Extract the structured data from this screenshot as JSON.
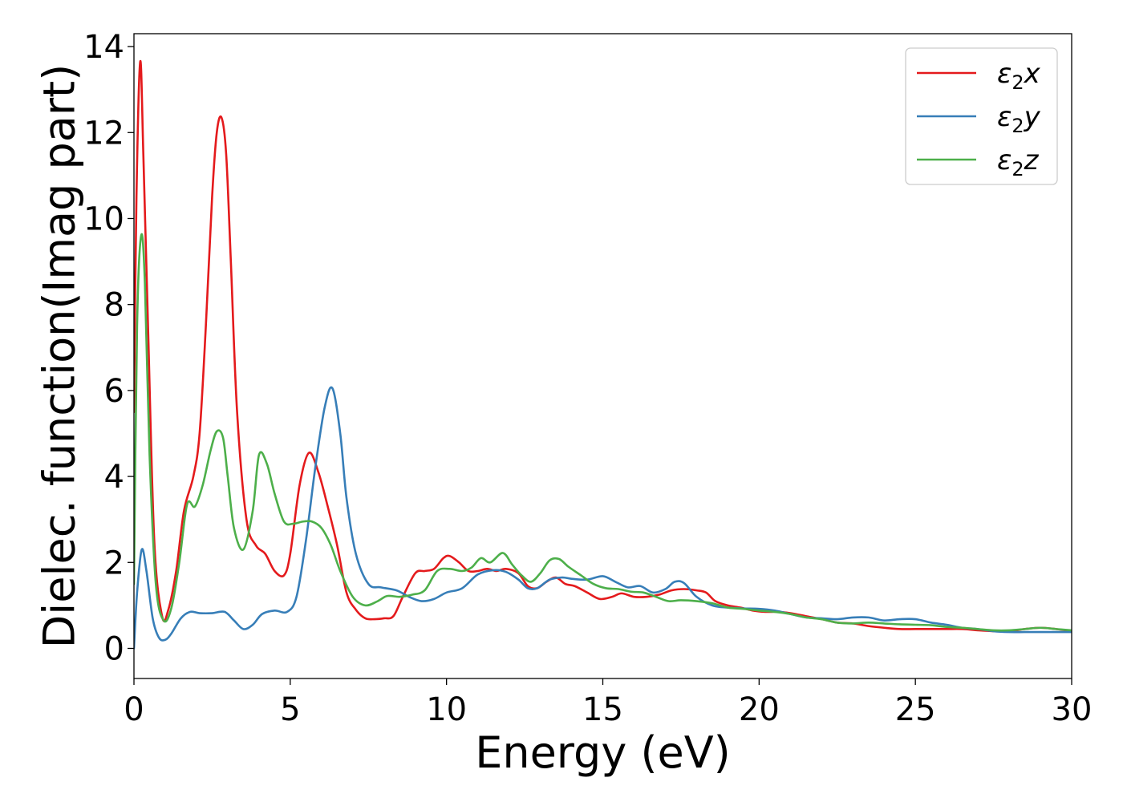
{
  "chart_data": {
    "type": "line",
    "xlabel": "Energy (eV)",
    "ylabel": "Dielec. function(Imag part)",
    "xlim": [
      0,
      30
    ],
    "ylim": [
      -0.7,
      14.3
    ],
    "xticks": [
      "0",
      "5",
      "10",
      "15",
      "20",
      "25",
      "30"
    ],
    "yticks": [
      "0",
      "2",
      "4",
      "6",
      "8",
      "10",
      "12",
      "14"
    ],
    "grid": false,
    "legend_position": "top-right",
    "series": [
      {
        "name": "ε₂x",
        "legend_base": "ε",
        "legend_sub": "2",
        "legend_suffix": "x",
        "color": "#e41a1c",
        "x": [
          0,
          0.08,
          0.2,
          0.3,
          0.45,
          0.65,
          0.9,
          1.1,
          1.35,
          1.6,
          1.9,
          2.1,
          2.3,
          2.5,
          2.65,
          2.8,
          2.95,
          3.1,
          3.3,
          3.6,
          3.9,
          4.2,
          4.5,
          4.8,
          5.0,
          5.3,
          5.6,
          5.9,
          6.2,
          6.5,
          6.8,
          7.1,
          7.4,
          7.7,
          8.0,
          8.3,
          8.6,
          9.0,
          9.3,
          9.6,
          9.9,
          10.1,
          10.4,
          10.7,
          11.0,
          11.3,
          11.6,
          11.9,
          12.3,
          12.6,
          12.9,
          13.2,
          13.5,
          13.8,
          14.1,
          14.5,
          14.9,
          15.3,
          15.6,
          16.0,
          16.4,
          16.8,
          17.2,
          17.6,
          18.0,
          18.3,
          18.6,
          19.0,
          19.4,
          19.8,
          20.2,
          20.6,
          21.0,
          21.5,
          22.0,
          22.5,
          23.0,
          23.5,
          24.0,
          24.5,
          25.0,
          25.5,
          26.0,
          26.5,
          27.0,
          27.5,
          28.0,
          28.5,
          29.0,
          29.5,
          30.0
        ],
        "y": [
          5.5,
          10.5,
          13.65,
          11.5,
          7.5,
          2.5,
          0.75,
          0.9,
          1.8,
          3.2,
          4.0,
          5.0,
          7.5,
          10.5,
          12.0,
          12.35,
          11.5,
          9.0,
          5.5,
          3.0,
          2.4,
          2.2,
          1.8,
          1.7,
          2.2,
          3.8,
          4.55,
          4.1,
          3.3,
          2.4,
          1.3,
          0.9,
          0.7,
          0.68,
          0.7,
          0.75,
          1.2,
          1.75,
          1.8,
          1.85,
          2.1,
          2.15,
          2.0,
          1.8,
          1.8,
          1.85,
          1.8,
          1.85,
          1.75,
          1.45,
          1.4,
          1.55,
          1.65,
          1.5,
          1.45,
          1.3,
          1.15,
          1.2,
          1.28,
          1.2,
          1.2,
          1.25,
          1.35,
          1.38,
          1.35,
          1.3,
          1.1,
          1.0,
          0.95,
          0.88,
          0.85,
          0.85,
          0.82,
          0.75,
          0.68,
          0.6,
          0.58,
          0.52,
          0.48,
          0.45,
          0.45,
          0.45,
          0.45,
          0.45,
          0.42,
          0.4,
          0.4,
          0.45,
          0.48,
          0.45,
          0.4
        ]
      },
      {
        "name": "ε₂y",
        "legend_base": "ε",
        "legend_sub": "2",
        "legend_suffix": "y",
        "color": "#377eb8",
        "x": [
          0,
          0.1,
          0.25,
          0.4,
          0.6,
          0.8,
          1.0,
          1.2,
          1.5,
          1.8,
          2.1,
          2.5,
          2.9,
          3.2,
          3.5,
          3.8,
          4.1,
          4.5,
          4.9,
          5.2,
          5.5,
          5.8,
          6.1,
          6.35,
          6.6,
          6.8,
          7.1,
          7.5,
          7.9,
          8.4,
          8.8,
          9.2,
          9.6,
          10.0,
          10.5,
          11.0,
          11.5,
          11.9,
          12.3,
          12.6,
          12.9,
          13.3,
          13.7,
          14.0,
          14.5,
          15.0,
          15.4,
          15.8,
          16.2,
          16.6,
          17.0,
          17.3,
          17.6,
          18.0,
          18.5,
          19.0,
          19.5,
          20.0,
          20.5,
          21.0,
          21.5,
          22.0,
          22.5,
          23.0,
          23.5,
          24.0,
          24.5,
          25.0,
          25.5,
          26.0,
          26.5,
          27.0,
          27.5,
          28.0,
          28.5,
          29.0,
          29.5,
          30.0
        ],
        "y": [
          0.0,
          1.3,
          2.3,
          1.8,
          0.7,
          0.25,
          0.2,
          0.35,
          0.7,
          0.85,
          0.82,
          0.82,
          0.85,
          0.65,
          0.45,
          0.55,
          0.8,
          0.88,
          0.85,
          1.2,
          2.5,
          4.2,
          5.6,
          6.05,
          5.0,
          3.5,
          2.2,
          1.5,
          1.42,
          1.35,
          1.2,
          1.1,
          1.15,
          1.3,
          1.4,
          1.72,
          1.82,
          1.78,
          1.6,
          1.4,
          1.4,
          1.6,
          1.65,
          1.62,
          1.6,
          1.68,
          1.55,
          1.42,
          1.45,
          1.3,
          1.38,
          1.55,
          1.52,
          1.2,
          1.0,
          0.95,
          0.93,
          0.92,
          0.88,
          0.8,
          0.72,
          0.7,
          0.68,
          0.72,
          0.72,
          0.65,
          0.68,
          0.68,
          0.6,
          0.55,
          0.48,
          0.45,
          0.4,
          0.38,
          0.38,
          0.38,
          0.38,
          0.38
        ]
      },
      {
        "name": "ε₂z",
        "legend_base": "ε",
        "legend_sub": "2",
        "legend_suffix": "z",
        "color": "#4daf4a",
        "x": [
          0,
          0.1,
          0.23,
          0.35,
          0.5,
          0.7,
          0.95,
          1.2,
          1.45,
          1.7,
          1.95,
          2.2,
          2.45,
          2.65,
          2.85,
          3.0,
          3.2,
          3.5,
          3.8,
          4.0,
          4.25,
          4.5,
          4.8,
          5.1,
          5.4,
          5.7,
          6.0,
          6.3,
          6.6,
          7.0,
          7.4,
          7.8,
          8.1,
          8.5,
          8.9,
          9.3,
          9.7,
          10.1,
          10.5,
          10.8,
          11.1,
          11.4,
          11.8,
          12.1,
          12.4,
          12.7,
          13.0,
          13.3,
          13.6,
          13.9,
          14.3,
          14.7,
          15.1,
          15.5,
          15.9,
          16.3,
          16.7,
          17.1,
          17.5,
          18.0,
          18.5,
          19.0,
          19.5,
          20.0,
          20.5,
          21.0,
          21.5,
          22.0,
          22.5,
          23.0,
          23.5,
          24.0,
          24.5,
          25.0,
          25.5,
          26.0,
          26.5,
          27.0,
          27.5,
          28.0,
          28.5,
          29.0,
          29.5,
          30.0
        ],
        "y": [
          1.5,
          7.5,
          9.6,
          8.5,
          4.5,
          1.5,
          0.65,
          0.95,
          2.0,
          3.35,
          3.3,
          3.8,
          4.6,
          5.05,
          4.9,
          4.0,
          2.8,
          2.3,
          3.2,
          4.5,
          4.3,
          3.6,
          2.95,
          2.9,
          2.95,
          2.95,
          2.8,
          2.4,
          1.8,
          1.2,
          1.0,
          1.1,
          1.22,
          1.2,
          1.25,
          1.35,
          1.8,
          1.85,
          1.8,
          1.88,
          2.1,
          2.0,
          2.22,
          1.95,
          1.7,
          1.55,
          1.75,
          2.05,
          2.08,
          1.9,
          1.7,
          1.5,
          1.4,
          1.38,
          1.32,
          1.3,
          1.2,
          1.1,
          1.12,
          1.1,
          1.05,
          0.95,
          0.92,
          0.88,
          0.85,
          0.8,
          0.72,
          0.68,
          0.6,
          0.58,
          0.6,
          0.58,
          0.56,
          0.55,
          0.54,
          0.5,
          0.48,
          0.45,
          0.42,
          0.42,
          0.45,
          0.48,
          0.45,
          0.42
        ]
      }
    ]
  }
}
